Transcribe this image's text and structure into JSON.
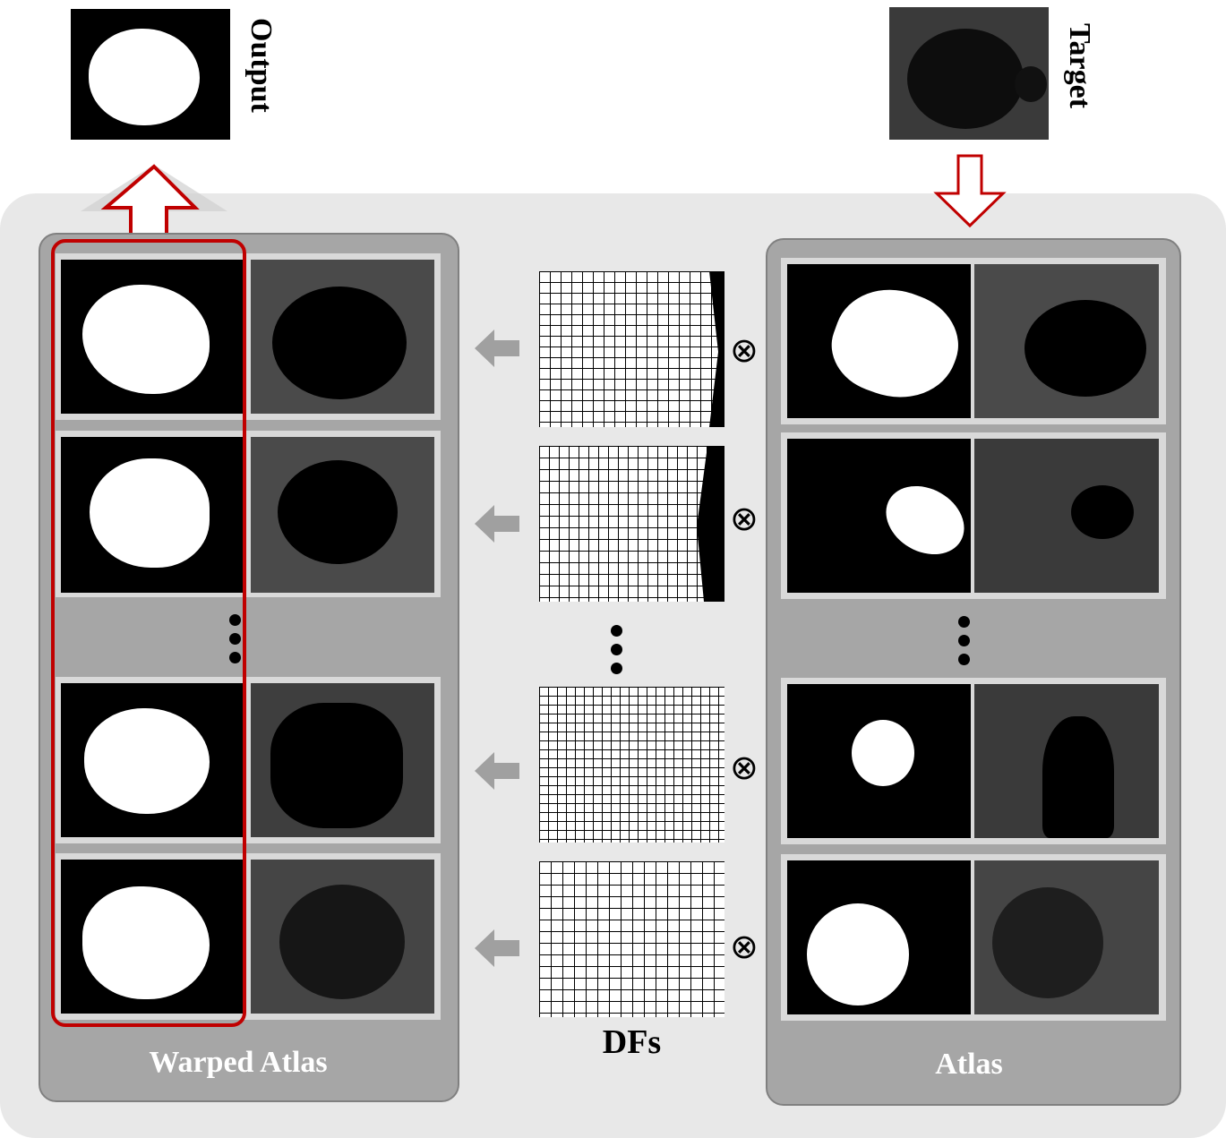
{
  "labels": {
    "output": "Output",
    "target": "Target",
    "warped_atlas": "Warped Atlas",
    "dfs": "DFs",
    "atlas": "Atlas"
  },
  "operator_symbol": "⊗",
  "colors": {
    "highlight_frame": "#c00000",
    "gray_arrow": "#a0a0a0",
    "group_fill": "#a6a6a6",
    "background_panel": "#e8e8e8"
  }
}
